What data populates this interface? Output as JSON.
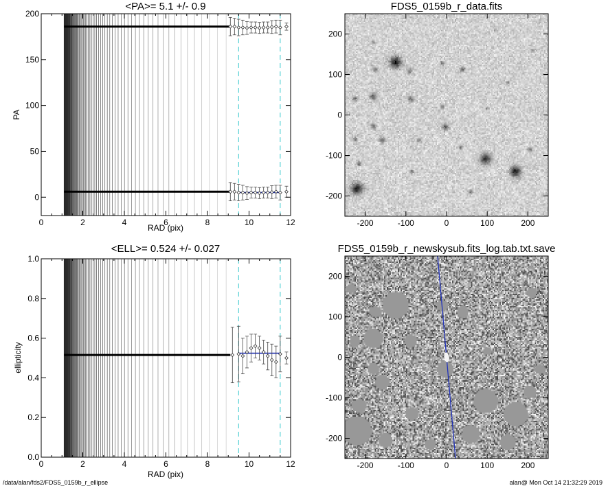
{
  "footer": {
    "left": "/data/alan/fds2/FDS5_0159b_r_ellipse",
    "right": "alan@  Mon Oct 14 21:32:29 2019"
  },
  "chart_data": [
    {
      "id": "pa",
      "type": "scatter",
      "title": "<PA>=   5.1 +/-   0.9",
      "xlabel": "RAD (pix)",
      "ylabel": "PA",
      "xlim": [
        0,
        12
      ],
      "ylim": [
        -20,
        200
      ],
      "xticks": [
        "0",
        "2",
        "4",
        "6",
        "8",
        "10",
        "12"
      ],
      "yticks": [
        "0",
        "50",
        "100",
        "150",
        "200"
      ],
      "vlines": [
        9.5,
        11.5
      ],
      "dense_radius_range": [
        1.1,
        9.1
      ],
      "series": [
        {
          "x": [
            9.1,
            9.3,
            9.5,
            9.7,
            9.9,
            10.1,
            10.3,
            10.5,
            10.7,
            10.9,
            11.1,
            11.3,
            11.5,
            11.8
          ],
          "y": [
            6,
            6,
            5,
            5,
            4.5,
            5,
            5,
            4.5,
            5,
            5,
            5.5,
            6,
            5,
            6
          ],
          "err": [
            10,
            9,
            9,
            8,
            7,
            6,
            6,
            6,
            6,
            6,
            7,
            7,
            8,
            6
          ]
        },
        {
          "x": [
            9.1,
            9.3,
            9.5,
            9.7,
            9.9,
            10.1,
            10.3,
            10.5,
            10.7,
            10.9,
            11.1,
            11.3,
            11.5,
            11.8
          ],
          "y": [
            186,
            186,
            185,
            185,
            184.5,
            185,
            185,
            184.5,
            185,
            185,
            185.5,
            186,
            185,
            186
          ],
          "err": [
            10,
            9,
            9,
            8,
            7,
            6,
            6,
            6,
            6,
            6,
            7,
            7,
            8,
            4
          ]
        }
      ],
      "fit": {
        "y": 5.1,
        "x": [
          9.5,
          11.5
        ],
        "color": "#1e2fb5"
      }
    },
    {
      "id": "ell",
      "type": "scatter",
      "title": "<ELL>= 0.524 +/-  0.027",
      "xlabel": "RAD (pix)",
      "ylabel": "ellipticity",
      "xlim": [
        0,
        12
      ],
      "ylim": [
        0,
        1
      ],
      "xticks": [
        "0",
        "2",
        "4",
        "6",
        "8",
        "10",
        "12"
      ],
      "yticks": [
        "0.0",
        "0.2",
        "0.4",
        "0.6",
        "0.8",
        "1.0"
      ],
      "vlines": [
        9.5,
        11.5
      ],
      "dense_radius_range": [
        1.1,
        9.1
      ],
      "series": [
        {
          "x": [
            9.2,
            9.5,
            9.7,
            9.9,
            10.1,
            10.3,
            10.5,
            10.7,
            10.9,
            11.1,
            11.3,
            11.5,
            11.8
          ],
          "y": [
            0.515,
            0.52,
            0.51,
            0.53,
            0.55,
            0.56,
            0.55,
            0.53,
            0.51,
            0.49,
            0.48,
            0.52,
            0.5
          ],
          "err": [
            0.14,
            0.14,
            0.09,
            0.08,
            0.07,
            0.06,
            0.06,
            0.06,
            0.07,
            0.08,
            0.08,
            0.09,
            0.03
          ]
        }
      ],
      "fit": {
        "y": 0.524,
        "x": [
          9.5,
          11.5
        ],
        "color": "#1e2fb5"
      }
    },
    {
      "id": "img1",
      "type": "heatmap",
      "title": "FDS5_0159b_r_data.fits",
      "xlim": [
        -250,
        250
      ],
      "ylim": [
        -250,
        250
      ],
      "xticks": [
        "-200",
        "-100",
        "0",
        "100",
        "200"
      ],
      "yticks": [
        "-200",
        "-100",
        "0",
        "100",
        "200"
      ],
      "sources": [
        {
          "x": -125,
          "y": 130,
          "r": 14,
          "v": 0.95
        },
        {
          "x": -175,
          "y": 112,
          "r": 6,
          "v": 0.5
        },
        {
          "x": -90,
          "y": 108,
          "r": 6,
          "v": 0.5
        },
        {
          "x": -10,
          "y": 128,
          "r": 5,
          "v": 0.5
        },
        {
          "x": 40,
          "y": 112,
          "r": 6,
          "v": 0.55
        },
        {
          "x": -225,
          "y": 40,
          "r": 6,
          "v": 0.5
        },
        {
          "x": -180,
          "y": 46,
          "r": 8,
          "v": 0.6
        },
        {
          "x": -88,
          "y": 40,
          "r": 7,
          "v": 0.55
        },
        {
          "x": -10,
          "y": 20,
          "r": 5,
          "v": 0.5
        },
        {
          "x": -3,
          "y": -30,
          "r": 8,
          "v": 0.6
        },
        {
          "x": -180,
          "y": -28,
          "r": 6,
          "v": 0.55
        },
        {
          "x": -225,
          "y": -60,
          "r": 5,
          "v": 0.5
        },
        {
          "x": -158,
          "y": -62,
          "r": 7,
          "v": 0.55
        },
        {
          "x": -68,
          "y": -62,
          "r": 5,
          "v": 0.45
        },
        {
          "x": 35,
          "y": -80,
          "r": 5,
          "v": 0.45
        },
        {
          "x": 96,
          "y": -108,
          "r": 13,
          "v": 0.85
        },
        {
          "x": 170,
          "y": -140,
          "r": 13,
          "v": 0.9
        },
        {
          "x": 205,
          "y": -85,
          "r": 5,
          "v": 0.5
        },
        {
          "x": -85,
          "y": -140,
          "r": 5,
          "v": 0.45
        },
        {
          "x": -220,
          "y": -182,
          "r": 14,
          "v": 0.95
        },
        {
          "x": -215,
          "y": -120,
          "r": 6,
          "v": 0.5
        },
        {
          "x": 100,
          "y": 15,
          "r": 4,
          "v": 0.4
        },
        {
          "x": 150,
          "y": 80,
          "r": 4,
          "v": 0.4
        },
        {
          "x": 210,
          "y": 160,
          "r": 4,
          "v": 0.4
        },
        {
          "x": -180,
          "y": 180,
          "r": 4,
          "v": 0.4
        },
        {
          "x": 60,
          "y": -190,
          "r": 5,
          "v": 0.45
        },
        {
          "x": 120,
          "y": 210,
          "r": 4,
          "v": 0.35
        },
        {
          "x": 230,
          "y": 230,
          "r": 3,
          "v": 0.35
        }
      ]
    },
    {
      "id": "img2",
      "type": "heatmap",
      "title": "FDS5_0159b_r_newskysub.fits_log.tab.txt.save",
      "xlim": [
        -250,
        250
      ],
      "ylim": [
        -250,
        250
      ],
      "xticks": [
        "-200",
        "-100",
        "0",
        "100",
        "200"
      ],
      "yticks": [
        "-200",
        "-100",
        "0",
        "100",
        "200"
      ],
      "major_axis_line": {
        "from": [
          -22,
          250
        ],
        "to": [
          22,
          -250
        ],
        "color": "#2233bb"
      },
      "center_ellipse": {
        "x": 0,
        "y": 0,
        "rx": 5,
        "ry": 11
      },
      "masks": [
        {
          "x": -125,
          "y": 128,
          "r": 32
        },
        {
          "x": -175,
          "y": 112,
          "r": 14
        },
        {
          "x": -10,
          "y": 128,
          "r": 14
        },
        {
          "x": 40,
          "y": 112,
          "r": 14
        },
        {
          "x": -225,
          "y": 40,
          "r": 14
        },
        {
          "x": -180,
          "y": 46,
          "r": 24
        },
        {
          "x": -88,
          "y": 40,
          "r": 16
        },
        {
          "x": -3,
          "y": -30,
          "r": 20
        },
        {
          "x": -158,
          "y": -62,
          "r": 18
        },
        {
          "x": -180,
          "y": -28,
          "r": 14
        },
        {
          "x": 96,
          "y": -108,
          "r": 30
        },
        {
          "x": 170,
          "y": -140,
          "r": 30
        },
        {
          "x": 205,
          "y": -85,
          "r": 16
        },
        {
          "x": -220,
          "y": -182,
          "r": 36
        },
        {
          "x": -215,
          "y": -120,
          "r": 18
        },
        {
          "x": 60,
          "y": -190,
          "r": 22
        },
        {
          "x": -85,
          "y": -140,
          "r": 16
        },
        {
          "x": -150,
          "y": -205,
          "r": 18
        },
        {
          "x": 150,
          "y": -210,
          "r": 20
        },
        {
          "x": 210,
          "y": 160,
          "r": 12
        },
        {
          "x": 100,
          "y": 15,
          "r": 10
        },
        {
          "x": -40,
          "y": -215,
          "r": 14
        },
        {
          "x": 230,
          "y": -30,
          "r": 12
        },
        {
          "x": -235,
          "y": 170,
          "r": 12
        }
      ]
    }
  ]
}
